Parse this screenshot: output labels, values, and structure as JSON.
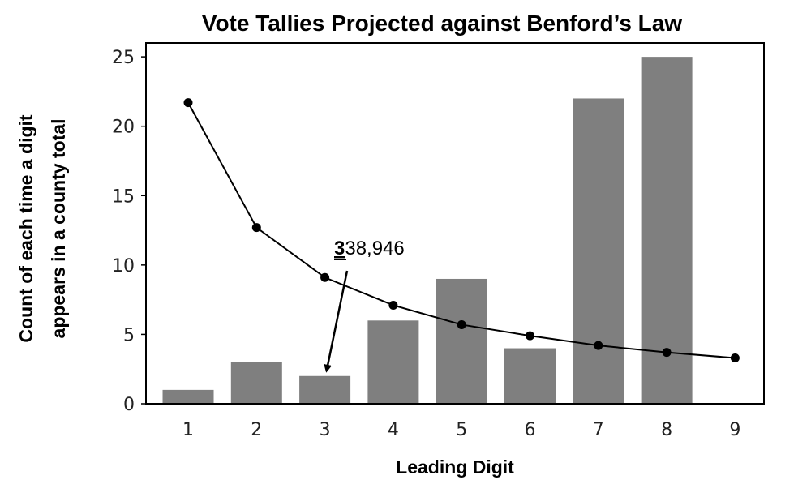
{
  "chart_data": {
    "type": "bar",
    "title": "Vote Tallies Projected against Benford’s Law",
    "xlabel": "Leading Digit",
    "ylabel_lines": [
      "Count of each time a digit",
      "appears in a county total"
    ],
    "categories": [
      "1",
      "2",
      "3",
      "4",
      "5",
      "6",
      "7",
      "8",
      "9"
    ],
    "series": [
      {
        "type": "bar",
        "values": [
          1,
          3,
          2,
          6,
          9,
          4,
          22,
          25,
          0
        ],
        "color": "#7f7f7f"
      },
      {
        "type": "line",
        "values": [
          21.7,
          12.7,
          9.1,
          7.1,
          5.7,
          4.9,
          4.2,
          3.7,
          3.3
        ],
        "color": "#000000"
      }
    ],
    "yticks": [
      0,
      5,
      10,
      15,
      20,
      25
    ],
    "ylim": [
      0,
      26
    ],
    "grid": false,
    "annotation": {
      "bold_part": "3",
      "rest": "38,946",
      "points_to_category": "3"
    }
  }
}
